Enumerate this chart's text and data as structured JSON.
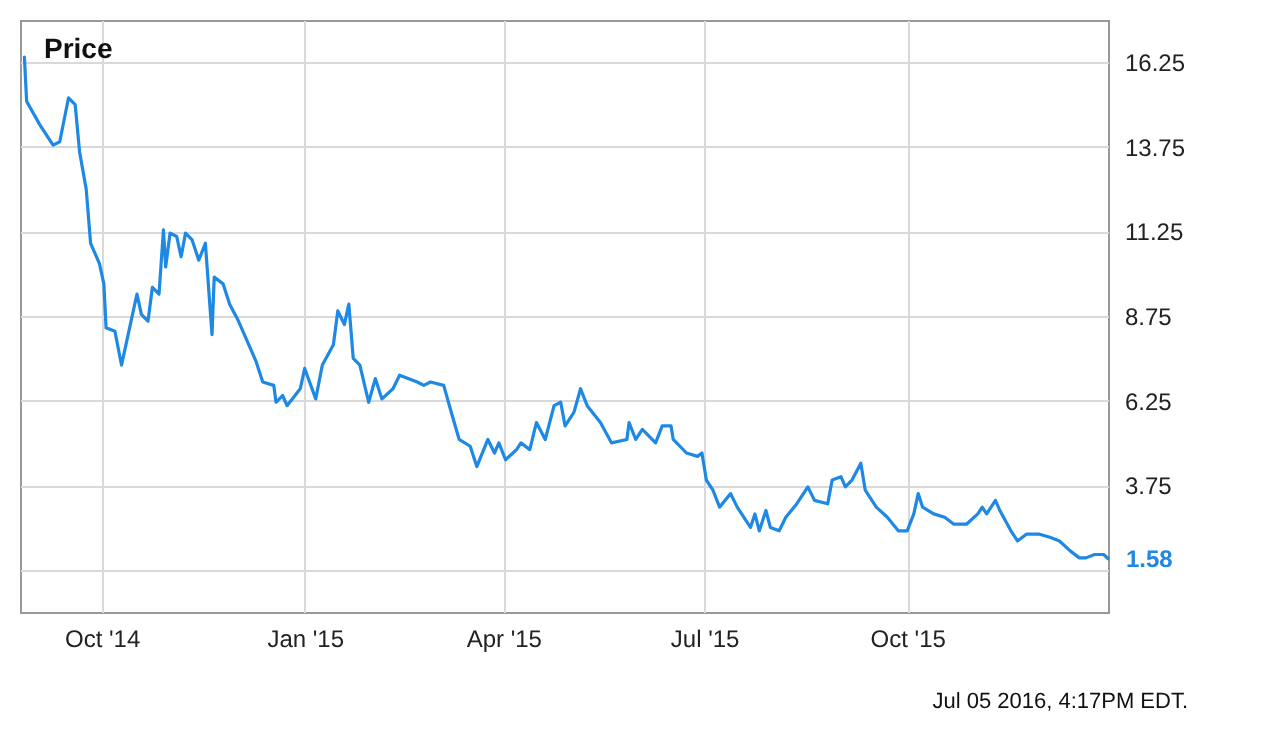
{
  "chart_data": {
    "type": "line",
    "title": "Price",
    "annotations": [
      "Jul 05 2016, 4:17PM EDT."
    ],
    "x": [
      "2014-08-27",
      "2014-08-28",
      "2014-09-03",
      "2014-09-09",
      "2014-09-12",
      "2014-09-16",
      "2014-09-19",
      "2014-09-21",
      "2014-09-24",
      "2014-09-26",
      "2014-09-30",
      "2014-10-02",
      "2014-10-03",
      "2014-10-07",
      "2014-10-10",
      "2014-10-13",
      "2014-10-17",
      "2014-10-19",
      "2014-10-22",
      "2014-10-24",
      "2014-10-27",
      "2014-10-29",
      "2014-10-30",
      "2014-11-01",
      "2014-11-04",
      "2014-11-06",
      "2014-11-08",
      "2014-11-11",
      "2014-11-14",
      "2014-11-17",
      "2014-11-20",
      "2014-11-21",
      "2014-11-25",
      "2014-11-28",
      "2014-12-02",
      "2014-12-06",
      "2014-12-10",
      "2014-12-13",
      "2014-12-18",
      "2014-12-19",
      "2014-12-22",
      "2014-12-24",
      "2014-12-30",
      "2015-01-01",
      "2015-01-06",
      "2015-01-09",
      "2015-01-14",
      "2015-01-16",
      "2015-01-19",
      "2015-01-21",
      "2015-01-23",
      "2015-01-26",
      "2015-01-30",
      "2015-02-02",
      "2015-02-05",
      "2015-02-10",
      "2015-02-13",
      "2015-02-21",
      "2015-02-24",
      "2015-02-27",
      "2015-03-05",
      "2015-03-08",
      "2015-03-12",
      "2015-03-17",
      "2015-03-20",
      "2015-03-25",
      "2015-03-28",
      "2015-03-30",
      "2015-04-02",
      "2015-04-07",
      "2015-04-09",
      "2015-04-13",
      "2015-04-16",
      "2015-04-20",
      "2015-04-24",
      "2015-04-27",
      "2015-04-29",
      "2015-05-03",
      "2015-05-06",
      "2015-05-09",
      "2015-05-15",
      "2015-05-20",
      "2015-05-27",
      "2015-05-28",
      "2015-05-31",
      "2015-06-03",
      "2015-06-09",
      "2015-06-12",
      "2015-06-16",
      "2015-06-17",
      "2015-06-23",
      "2015-06-28",
      "2015-06-30",
      "2015-07-02",
      "2015-07-05",
      "2015-07-08",
      "2015-07-13",
      "2015-07-16",
      "2015-07-22",
      "2015-07-24",
      "2015-07-26",
      "2015-07-29",
      "2015-07-31",
      "2015-08-04",
      "2015-08-07",
      "2015-08-12",
      "2015-08-17",
      "2015-08-20",
      "2015-08-26",
      "2015-08-28",
      "2015-09-01",
      "2015-09-03",
      "2015-09-06",
      "2015-09-10",
      "2015-09-12",
      "2015-09-17",
      "2015-09-22",
      "2015-09-27",
      "2015-10-01",
      "2015-10-04",
      "2015-10-06",
      "2015-10-08",
      "2015-10-13",
      "2015-10-18",
      "2015-10-22",
      "2015-10-28",
      "2015-11-02",
      "2015-11-04",
      "2015-11-06",
      "2015-11-10",
      "2015-11-12",
      "2015-11-17",
      "2015-11-20",
      "2015-11-24",
      "2015-11-30",
      "2015-12-05",
      "2015-12-09",
      "2015-12-14",
      "2015-12-18",
      "2015-12-21",
      "2015-12-25",
      "2015-12-29",
      "2015-12-31"
    ],
    "series": [
      {
        "color": "#1e88e5",
        "values": [
          16.4,
          15.1,
          14.4,
          13.8,
          13.9,
          15.2,
          15.0,
          13.6,
          12.5,
          10.9,
          10.3,
          9.7,
          8.4,
          8.3,
          7.3,
          8.2,
          9.4,
          8.8,
          8.6,
          9.6,
          9.4,
          11.3,
          10.2,
          11.2,
          11.1,
          10.5,
          11.2,
          11.0,
          10.4,
          10.9,
          8.2,
          9.9,
          9.7,
          9.1,
          8.6,
          8.0,
          7.4,
          6.8,
          6.7,
          6.2,
          6.4,
          6.1,
          6.6,
          7.2,
          6.3,
          7.3,
          7.9,
          8.9,
          8.5,
          9.1,
          7.5,
          7.3,
          6.2,
          6.9,
          6.3,
          6.6,
          7.0,
          6.8,
          6.7,
          6.8,
          6.7,
          6.0,
          5.1,
          4.9,
          4.3,
          5.1,
          4.7,
          5.0,
          4.5,
          4.8,
          5.0,
          4.8,
          5.6,
          5.1,
          6.1,
          6.2,
          5.5,
          5.9,
          6.6,
          6.1,
          5.6,
          5.0,
          5.1,
          5.6,
          5.1,
          5.4,
          5.0,
          5.5,
          5.5,
          5.1,
          4.7,
          4.6,
          4.7,
          3.9,
          3.6,
          3.1,
          3.5,
          3.1,
          2.5,
          2.9,
          2.4,
          3.0,
          2.5,
          2.4,
          2.8,
          3.2,
          3.7,
          3.3,
          3.2,
          3.9,
          4.0,
          3.7,
          3.9,
          4.4,
          3.6,
          3.1,
          2.8,
          2.4,
          2.4,
          2.9,
          3.5,
          3.1,
          2.9,
          2.8,
          2.6,
          2.6,
          2.9,
          3.1,
          2.9,
          3.3,
          3.0,
          2.4,
          2.1,
          2.3,
          2.3,
          2.2,
          2.1,
          1.8,
          1.6,
          1.6,
          1.7,
          1.7,
          1.58
        ],
        "value_labels": [
          null,
          null,
          null,
          null,
          null,
          null,
          null,
          null,
          null,
          null,
          null,
          null,
          null,
          null,
          null,
          null,
          null,
          null,
          null,
          null,
          null,
          null,
          null,
          null,
          null,
          null,
          null,
          null,
          null,
          null,
          null,
          null,
          null,
          null,
          null,
          null,
          null,
          null,
          null,
          null,
          null,
          null,
          null,
          null,
          null,
          null,
          null,
          null,
          null,
          null,
          null,
          null,
          null,
          null,
          null,
          null,
          null,
          null,
          null,
          null,
          null,
          null,
          null,
          null,
          null,
          null,
          null,
          null,
          null,
          null,
          null,
          null,
          null,
          null,
          null,
          null,
          null,
          null,
          null,
          null,
          null,
          null,
          null,
          null,
          null,
          null,
          null,
          null,
          null,
          null,
          null,
          null,
          null,
          null,
          null,
          null,
          null,
          null,
          null,
          null,
          null,
          null,
          null,
          null,
          null,
          null,
          null,
          null,
          null,
          null,
          null,
          null,
          null,
          null,
          null,
          null,
          null,
          null,
          null,
          null,
          null,
          null,
          null,
          null,
          null,
          null,
          null,
          null,
          null,
          null,
          null,
          null,
          null,
          null,
          null,
          null,
          null,
          null,
          null,
          null,
          null,
          null,
          "1.58"
        ]
      }
    ],
    "xlim": [
      "2014-08-25",
      "2015-12-31"
    ],
    "xticks": [
      {
        "value": "2014-10-01",
        "label": "Oct '14"
      },
      {
        "value": "2015-01-01",
        "label": "Jan '15"
      },
      {
        "value": "2015-04-01",
        "label": "Apr '15"
      },
      {
        "value": "2015-07-01",
        "label": "Jul '15"
      },
      {
        "value": "2015-10-01",
        "label": "Oct '15"
      }
    ],
    "ylim": [
      0,
      17.5
    ],
    "yticks": [
      {
        "value": 1.25,
        "label": null
      },
      3.75,
      6.25,
      8.75,
      11.25,
      13.75,
      16.25
    ],
    "grid": true
  }
}
